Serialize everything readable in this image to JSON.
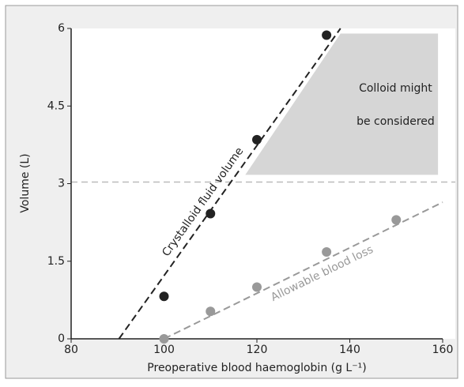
{
  "chart_data": {
    "type": "scatter",
    "xlabel": "Preoperative blood haemoglobin (g L⁻¹)",
    "ylabel": "Volume (L)",
    "xlim": [
      80,
      160
    ],
    "ylim": [
      0,
      6
    ],
    "xticks": [
      80,
      100,
      120,
      140,
      160
    ],
    "yticks": [
      0,
      1.5,
      3,
      4.5,
      6
    ],
    "series": [
      {
        "name": "Crystalloid fluid volume",
        "color": "#222222",
        "x": [
          100,
          110,
          120,
          135
        ],
        "values": [
          0.82,
          2.42,
          3.85,
          5.87
        ],
        "fit_x": [
          90.3,
          138
        ],
        "fit_values": [
          0,
          6
        ]
      },
      {
        "name": "Allowable blood loss",
        "color": "#999999",
        "x": [
          100,
          110,
          120,
          135,
          150
        ],
        "values": [
          0,
          0.53,
          1.0,
          1.68,
          2.3
        ],
        "fit_x": [
          100,
          160
        ],
        "fit_values": [
          0,
          2.64
        ]
      }
    ],
    "threshold": 3.03,
    "region": {
      "x": [
        117.5,
        138,
        159,
        159
      ],
      "values": [
        3.17,
        5.9,
        5.9,
        3.17
      ],
      "color": "#d6d6d6",
      "text": [
        "Colloid might",
        "be considered"
      ]
    }
  }
}
